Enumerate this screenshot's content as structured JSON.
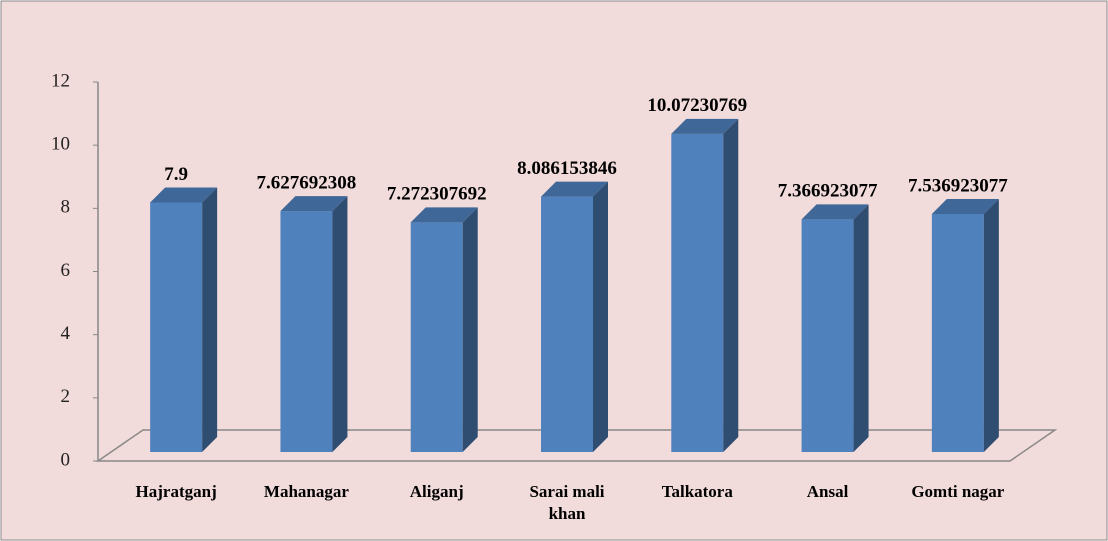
{
  "chart_data": {
    "type": "bar3d",
    "categories": [
      "Hajratganj",
      "Mahanagar",
      "Aliganj",
      "Sarai mali khan",
      "Talkatora",
      "Ansal",
      "Gomti nagar"
    ],
    "values": [
      7.9,
      7.627692308,
      7.272307692,
      8.086153846,
      10.07230769,
      7.366923077,
      7.536923077
    ],
    "color": "#4f81bd",
    "ylim": [
      0,
      12
    ],
    "yticks": [
      0,
      2,
      4,
      6,
      8,
      10,
      12
    ]
  }
}
